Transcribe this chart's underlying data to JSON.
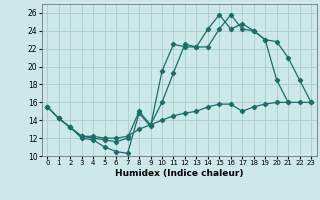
{
  "xlabel": "Humidex (Indice chaleur)",
  "bg_color": "#cce8e8",
  "grid_color": "#aacccc",
  "line_color": "#1a6e6a",
  "xlim": [
    -0.5,
    23.5
  ],
  "ylim": [
    10,
    27
  ],
  "yticks": [
    10,
    12,
    14,
    16,
    18,
    20,
    22,
    24,
    26
  ],
  "xticks": [
    0,
    1,
    2,
    3,
    4,
    5,
    6,
    7,
    8,
    9,
    10,
    11,
    12,
    13,
    14,
    15,
    16,
    17,
    18,
    19,
    20,
    21,
    22,
    23
  ],
  "line1_y": [
    15.5,
    14.2,
    13.2,
    12.0,
    11.8,
    11.0,
    10.5,
    10.3,
    14.8,
    13.3,
    19.5,
    22.5,
    22.2,
    22.2,
    24.2,
    25.8,
    24.2,
    24.8,
    24.0,
    23.0,
    18.5,
    16.0,
    null,
    null
  ],
  "line2_y": [
    15.5,
    14.2,
    13.2,
    12.2,
    12.0,
    11.8,
    11.6,
    12.0,
    15.0,
    13.5,
    16.0,
    19.3,
    22.5,
    22.2,
    22.2,
    24.2,
    25.8,
    24.2,
    24.0,
    23.0,
    22.8,
    21.0,
    18.5,
    16.0
  ],
  "line3_y": [
    15.5,
    14.2,
    13.2,
    12.2,
    12.2,
    12.0,
    12.0,
    12.2,
    13.0,
    13.5,
    14.0,
    14.5,
    14.8,
    15.0,
    15.5,
    15.8,
    15.8,
    15.0,
    15.5,
    15.8,
    16.0,
    16.0,
    16.0,
    16.0
  ]
}
